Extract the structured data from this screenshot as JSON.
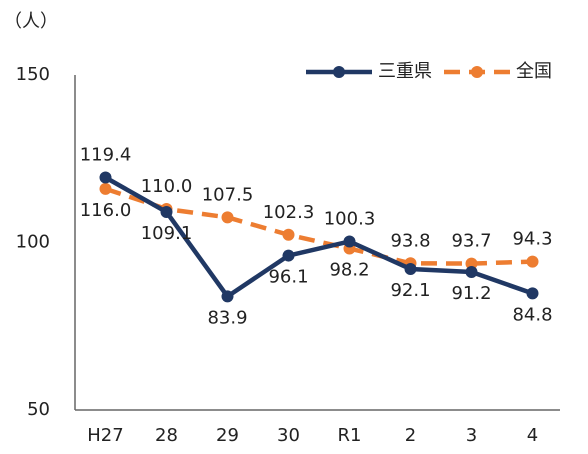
{
  "chart_data": {
    "type": "line",
    "y_label": "（人）",
    "categories": [
      "H27",
      "28",
      "29",
      "30",
      "R1",
      "2",
      "3",
      "4"
    ],
    "series": [
      {
        "name": "三重県",
        "color": "#203864",
        "dash": false,
        "values": [
          119.4,
          109.1,
          83.9,
          96.1,
          100.3,
          92.1,
          91.2,
          84.8
        ],
        "value_labels": [
          "119.4",
          "109.1",
          "83.9",
          "96.1",
          "100.3",
          "92.1",
          "91.2",
          "84.8"
        ]
      },
      {
        "name": "全国",
        "color": "#ed7d31",
        "dash": true,
        "values": [
          116.0,
          110.0,
          107.5,
          102.3,
          98.2,
          93.8,
          93.7,
          94.3
        ],
        "value_labels": [
          "116.0",
          "110.0",
          "107.5",
          "102.3",
          "98.2",
          "93.8",
          "93.7",
          "94.3"
        ]
      }
    ],
    "ylim": [
      50,
      150
    ],
    "yticks": [
      50,
      100,
      150
    ],
    "grid": false,
    "legend": "top-right"
  }
}
